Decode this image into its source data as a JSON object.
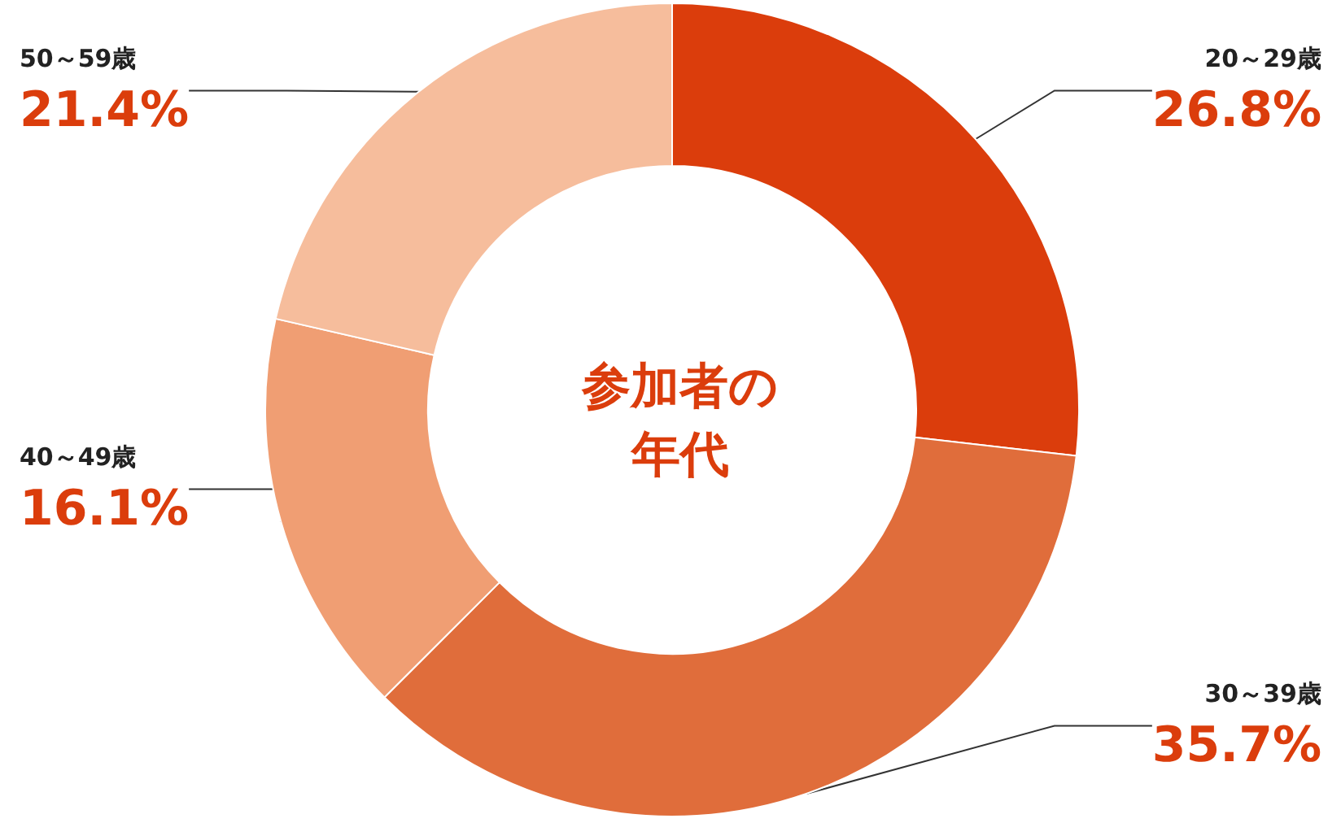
{
  "chart_data": {
    "type": "donut",
    "title": "参加者の年代",
    "categories": [
      "20～29歳",
      "30～39歳",
      "40～49歳",
      "50～59歳"
    ],
    "values": [
      26.8,
      35.7,
      16.1,
      21.4
    ],
    "colors": [
      "#db3d0c",
      "#e06d3b",
      "#f09e73",
      "#f6bd9c"
    ],
    "value_labels": [
      "26.8%",
      "35.7%",
      "16.1%",
      "21.4%"
    ],
    "legend": false
  }
}
